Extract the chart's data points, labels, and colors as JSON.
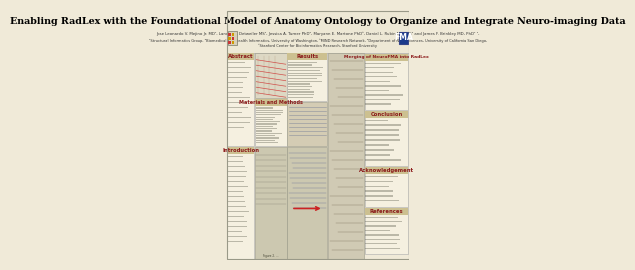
{
  "background_color": "#f0ead8",
  "title": "Enabling RadLex with the Foundational Model of Anatomy Ontology to Organize and Integrate Neuro-imaging Data",
  "title_fontsize": 6.8,
  "title_color": "#000000",
  "authors": "Jose Leonardo V. Mejino Jr. MD¹, Landon T. Detweiler MS¹, Jessica A. Turner PhD², Maryann E. Martone PhD³, Daniel L. Rubin MD, MS⁴ and James F. Brinkley MD, PhD¹ ¹,",
  "authors_fontsize": 2.8,
  "affiliations_line1": "¹Structural Informatics Group, ²Biomedical and Health Informatics, University of Washington, ³MIND Research Network, ⁴Department of Neurosciences, University of California San Diego,",
  "affiliations_line2": "⁵Stanford Center for Bioinformatics Research, Stanford University",
  "affiliations_fontsize": 2.6,
  "header_color": "#f0ead8",
  "section_title_color": "#8b1a1a",
  "section_title_fontsize": 3.8,
  "body_fontsize": 2.5,
  "text_color": "#333333",
  "line_color": "#888888",
  "section_bg": "#f5f0e0",
  "section_border": "#aaaaaa",
  "fig_bg1": "#e8e0cc",
  "fig_bg2": "#ddd8c0",
  "fig_bg3": "#ccc8b0",
  "red_color": "#cc2222",
  "blue_color": "#334488",
  "poster_border": "#999988"
}
